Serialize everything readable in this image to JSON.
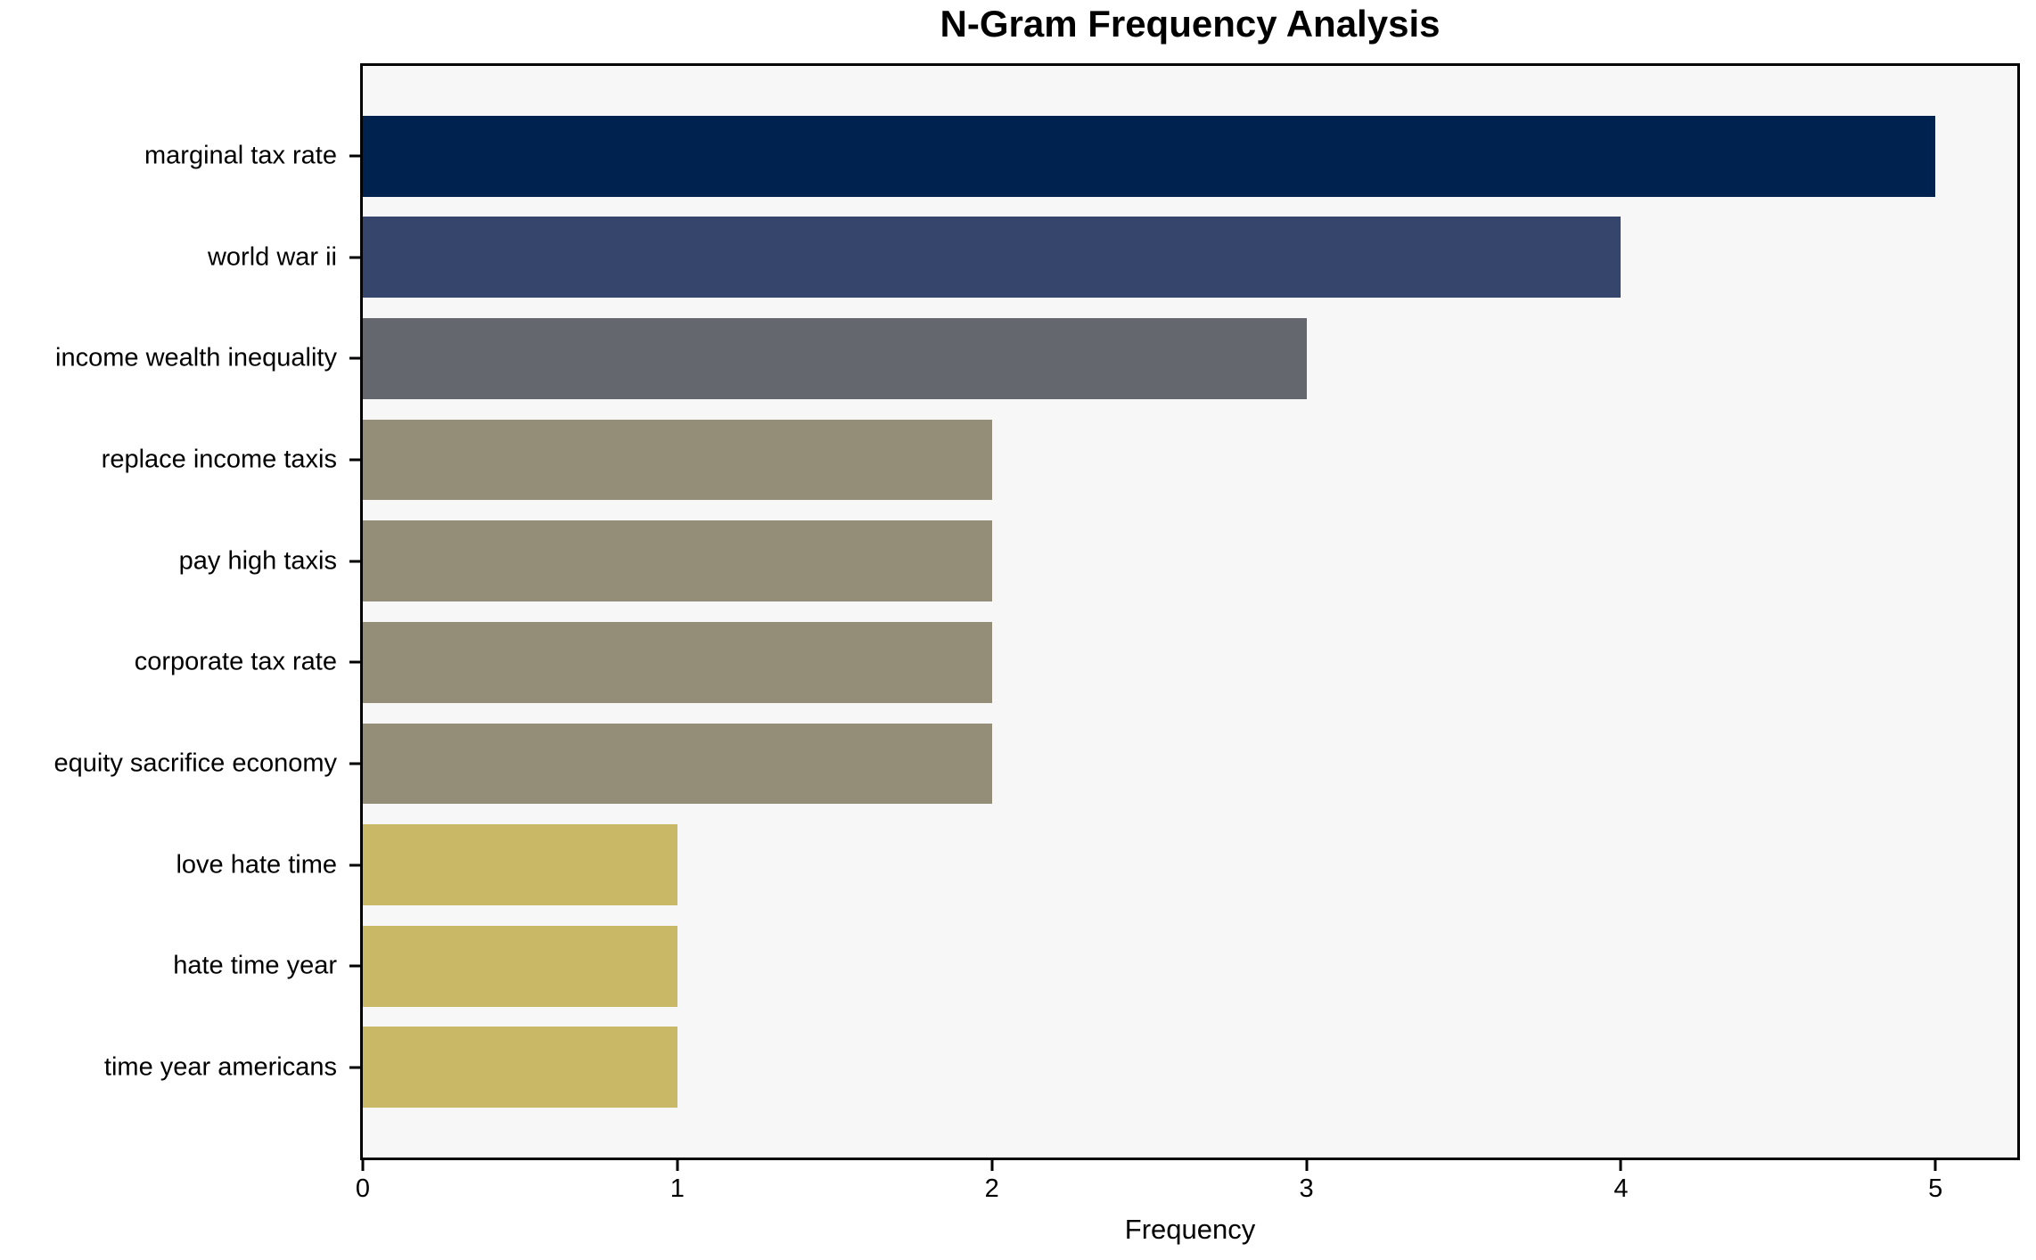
{
  "title": "N-Gram Frequency Analysis",
  "chart_data": {
    "type": "bar",
    "orientation": "horizontal",
    "title": "N-Gram Frequency Analysis",
    "xlabel": "Frequency",
    "ylabel": "",
    "categories": [
      "marginal tax rate",
      "world war ii",
      "income wealth inequality",
      "replace income taxis",
      "pay high taxis",
      "corporate tax rate",
      "equity sacrifice economy",
      "love hate time",
      "hate time year",
      "time year americans"
    ],
    "values": [
      5,
      4,
      3,
      2,
      2,
      2,
      2,
      1,
      1,
      1
    ],
    "bar_colors": [
      "#00224e",
      "#35456c",
      "#65676e",
      "#948e78",
      "#948e78",
      "#948e78",
      "#948e78",
      "#c9b865",
      "#c9b865",
      "#c9b865"
    ],
    "xticks": [
      0,
      1,
      2,
      3,
      4,
      5
    ],
    "xlim": [
      0,
      5.26
    ],
    "grid": false,
    "legend": null,
    "plot_bg": "#f7f7f7",
    "page_bg": "#ffffff",
    "spine_color": "#000000"
  }
}
